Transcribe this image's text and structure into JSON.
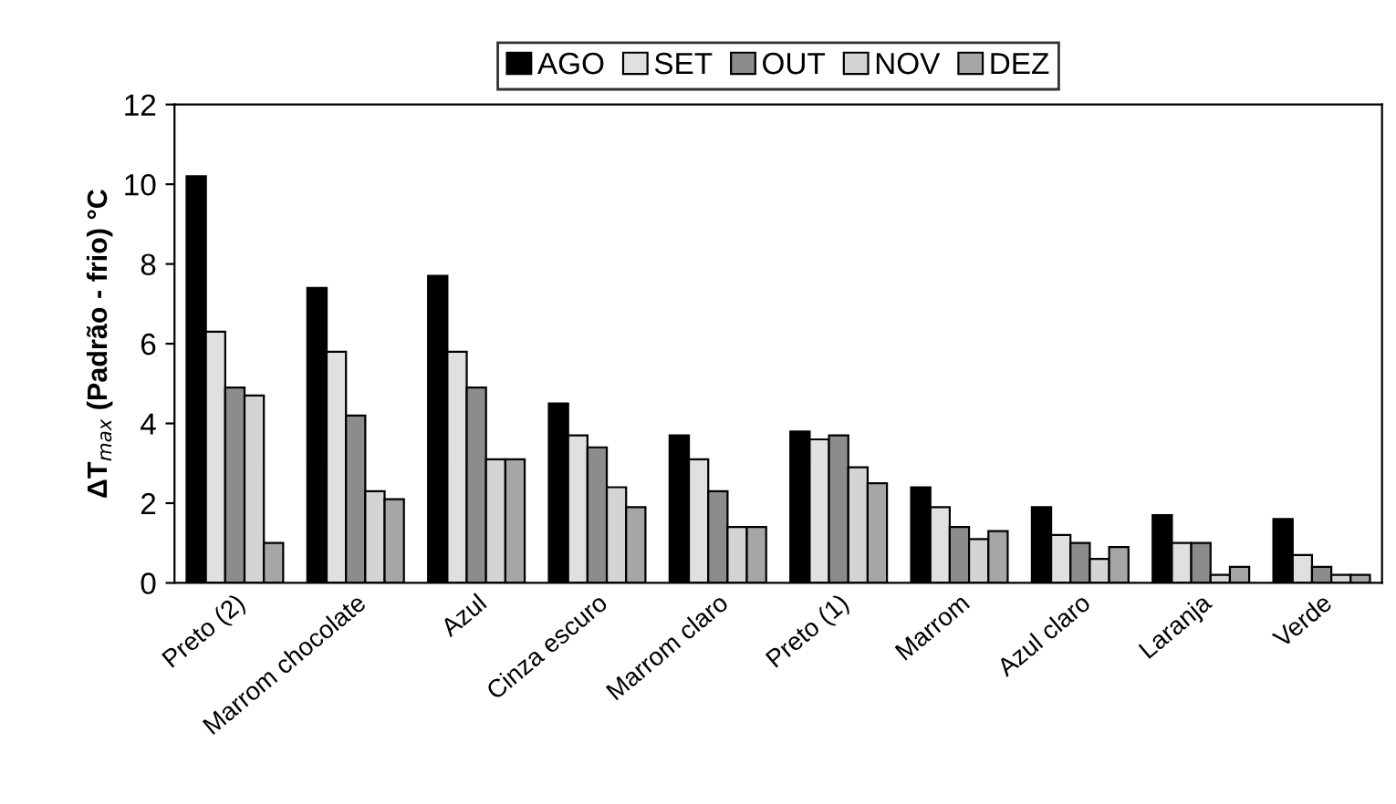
{
  "chart_data": {
    "type": "bar",
    "ylabel": "ΔT$_{max}$ (Padrão - frio) °C",
    "categories": [
      "Preto (2)",
      "Marrom chocolate",
      "Azul",
      "Cinza escuro",
      "Marrom claro",
      "Preto (1)",
      "Marrom",
      "Azul claro",
      "Laranja",
      "Verde"
    ],
    "series": [
      {
        "name": "AGO",
        "color": "#000000",
        "values": [
          10.2,
          7.4,
          7.7,
          4.5,
          3.7,
          3.8,
          2.4,
          1.9,
          1.7,
          1.6
        ]
      },
      {
        "name": "SET",
        "color": "#e0e0e0",
        "values": [
          6.3,
          5.8,
          5.8,
          3.7,
          3.1,
          3.6,
          1.9,
          1.2,
          1.0,
          0.7
        ]
      },
      {
        "name": "OUT",
        "color": "#8c8c8c",
        "values": [
          4.9,
          4.2,
          4.9,
          3.4,
          2.3,
          3.7,
          1.4,
          1.0,
          1.0,
          0.4
        ]
      },
      {
        "name": "NOV",
        "color": "#d4d4d4",
        "values": [
          4.7,
          2.3,
          3.1,
          2.4,
          1.4,
          2.9,
          1.1,
          0.6,
          0.2,
          0.2
        ]
      },
      {
        "name": "DEZ",
        "color": "#a6a6a6",
        "values": [
          1.0,
          2.1,
          3.1,
          1.9,
          1.4,
          2.5,
          1.3,
          0.9,
          0.4,
          0.2
        ]
      }
    ],
    "ylim": [
      0,
      12
    ],
    "yticks": [
      0,
      2,
      4,
      6,
      8,
      10,
      12
    ],
    "legend": "top",
    "grid": false
  }
}
